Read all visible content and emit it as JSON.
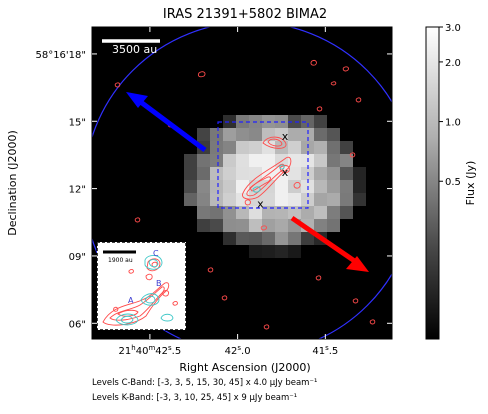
{
  "chart_data": {
    "type": "heatmap",
    "title": "IRAS 21391+5802 BIMA2",
    "xlabel": "Right Ascension (J2000)",
    "ylabel": "Declination (J2000)",
    "x_ticks": [
      {
        "h": "21",
        "m": "40",
        "s": "42.5",
        "sec": 42.5
      },
      {
        "h": "",
        "m": "",
        "s": "42.0",
        "sec": 42.0
      },
      {
        "h": "",
        "m": "",
        "s": "41.5",
        "sec": 41.5
      }
    ],
    "y_ticks": [
      {
        "label": "58°16'18\"",
        "arcsec": 18
      },
      {
        "label": "15\"",
        "arcsec": 15
      },
      {
        "label": "12\"",
        "arcsec": 12
      },
      {
        "label": "09\"",
        "arcsec": 9
      },
      {
        "label": "06\"",
        "arcsec": 6
      }
    ],
    "xlim_sec": [
      42.83,
      41.12
    ],
    "ylim_arcsec": [
      5.3,
      19.2
    ],
    "colorbar": {
      "label": "Flux (Jy)",
      "scale": "log",
      "range": [
        0.08,
        3.0
      ],
      "ticks": [
        {
          "label": "3.0",
          "value": 3.0
        },
        {
          "label": "2.0",
          "value": 2.0
        },
        {
          "label": "1.0",
          "value": 1.0
        },
        {
          "label": "0.5",
          "value": 0.5
        }
      ]
    },
    "scale_bar": {
      "label": "3500 au"
    },
    "inset": {
      "scale_bar": "1900 au",
      "labels": [
        "A",
        "B",
        "C"
      ]
    },
    "markers": [
      {
        "label": "x",
        "ra_sec": 41.73,
        "dec_arcsec": 14.3
      },
      {
        "label": "x",
        "ra_sec": 41.73,
        "dec_arcsec": 12.7
      },
      {
        "label": "x",
        "ra_sec": 41.87,
        "dec_arcsec": 11.3
      }
    ],
    "arrows": [
      {
        "name": "blue-outflow",
        "color": "#0000ff"
      },
      {
        "name": "red-outflow",
        "color": "#ff0000"
      }
    ],
    "contour_levels": {
      "c_band": "Levels C-Band: [-3, 3, 5, 15, 30, 45] x 4.0 μJy beam⁻¹",
      "k_band": "Levels K-Band: [-3, 3, 10, 25, 45] x 9 μJy beam⁻¹"
    },
    "grid": false,
    "colors": {
      "c_band": "#ff4b4b",
      "k_band": "#40c8c8",
      "primary_beam": "#3030ff",
      "box": "#2020ff"
    }
  }
}
